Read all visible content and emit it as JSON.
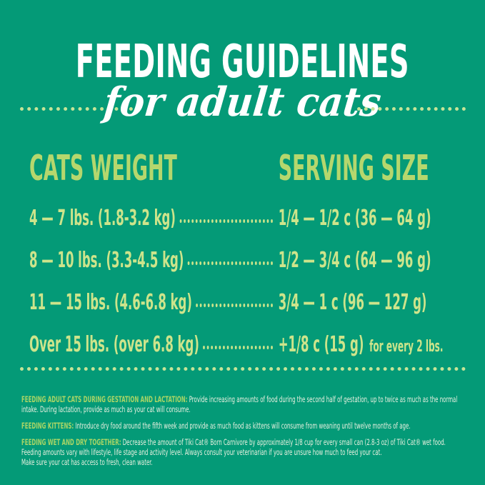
{
  "header": {
    "title": "FEEDING GUIDELINES",
    "subtitle": "for adult cats"
  },
  "table": {
    "col1_header": "CATS WEIGHT",
    "col2_header": "SERVING SIZE",
    "rows": [
      {
        "weight": "4 — 7 lbs. (1.8-3.2 kg)",
        "serving": "1/4 — 1/2 c (36 — 64 g)",
        "note": ""
      },
      {
        "weight": "8 — 10 lbs. (3.3-4.5 kg)",
        "serving": "1/2 — 3/4 c (64 — 96 g)",
        "note": ""
      },
      {
        "weight": "11 — 15 lbs. (4.6-6.8 kg)",
        "serving": "3/4 — 1 c (96 — 127 g)",
        "note": ""
      },
      {
        "weight": "Over 15 lbs. (over 6.8 kg)",
        "serving": "+1/8 c (15 g)",
        "note": "for every 2 lbs."
      }
    ]
  },
  "notes": [
    {
      "lead": "FEEDING ADULT CATS DURING GESTATION AND LACTATION:",
      "body": "Provide increasing amounts of food during the second half of gestation, up to twice as much as the normal intake.  During lactation, provide as much as your cat will consume."
    },
    {
      "lead": "FEEDING KITTENS:",
      "body": "Introduce dry food around the fifth week and provide as much food as kittens will consume from weaning until twelve months of age."
    },
    {
      "lead": "FEEDING WET AND DRY TOGETHER:",
      "body": "Decrease the amount of Tiki Cat® Born Carnivore by approximately 1/8 cup for every small can (2.8-3 oz) of Tiki Cat® wet food. Feeding amounts vary with lifestyle, life stage and activity level.  Always consult your veterinarian if you are unsure how much to feed your cat.",
      "body2": "Make sure your cat has access to fresh, clean water."
    }
  ],
  "colors": {
    "background": "#049a77",
    "title_white": "#ffffff",
    "header_green": "#b5d76d",
    "row_green": "#cde48b",
    "dot_green": "#c6e497",
    "lead_green": "#a9d566",
    "body_white": "#e9f1e0"
  }
}
